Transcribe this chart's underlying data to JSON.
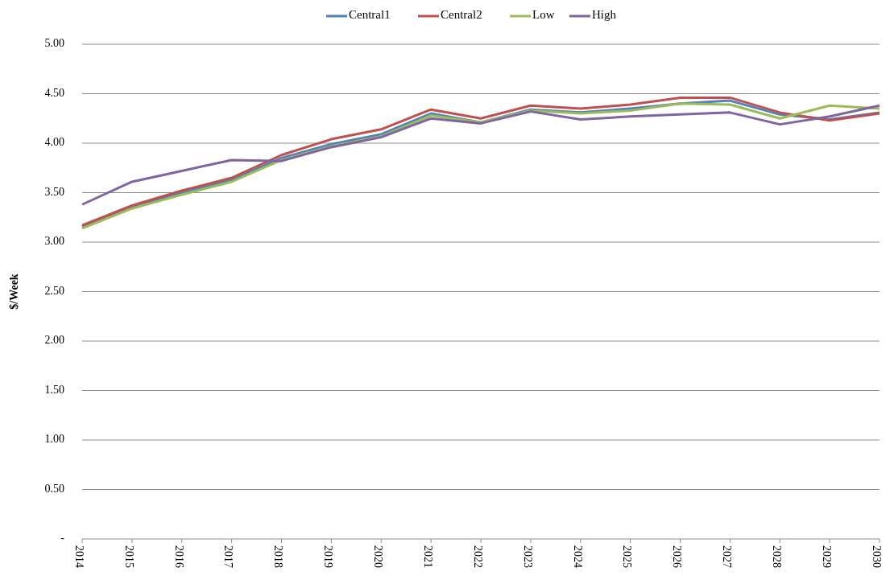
{
  "chart_data": {
    "type": "line",
    "ylabel": "$/Week",
    "categories": [
      "2014",
      "2015",
      "2016",
      "2017",
      "2018",
      "2019",
      "2020",
      "2021",
      "2022",
      "2023",
      "2024",
      "2025",
      "2026",
      "2027",
      "2028",
      "2029",
      "2030"
    ],
    "series": [
      {
        "name": "Central1",
        "color": "#4f81bd",
        "values": [
          3.16,
          3.36,
          3.5,
          3.63,
          3.85,
          3.99,
          4.09,
          4.3,
          4.21,
          4.34,
          4.31,
          4.35,
          4.4,
          4.43,
          4.29,
          4.24,
          4.31
        ]
      },
      {
        "name": "Central2",
        "color": "#c0504d",
        "values": [
          3.17,
          3.37,
          3.52,
          3.65,
          3.88,
          4.04,
          4.14,
          4.34,
          4.25,
          4.38,
          4.35,
          4.39,
          4.46,
          4.46,
          4.31,
          4.23,
          4.3
        ]
      },
      {
        "name": "Low",
        "color": "#9bbb59",
        "values": [
          3.14,
          3.34,
          3.48,
          3.61,
          3.83,
          3.97,
          4.07,
          4.28,
          4.21,
          4.33,
          4.3,
          4.33,
          4.4,
          4.39,
          4.25,
          4.38,
          4.35
        ]
      },
      {
        "name": "High",
        "color": "#8064a2",
        "values": [
          3.38,
          3.61,
          3.72,
          3.83,
          3.82,
          3.96,
          4.06,
          4.25,
          4.2,
          4.32,
          4.24,
          4.27,
          4.29,
          4.31,
          4.19,
          4.27,
          4.38
        ]
      }
    ],
    "ylim": [
      0,
      5
    ],
    "yticks": [
      {
        "value": 0,
        "label": "-"
      },
      {
        "value": 0.5,
        "label": "0.50"
      },
      {
        "value": 1,
        "label": "1.00"
      },
      {
        "value": 1.5,
        "label": "1.50"
      },
      {
        "value": 2,
        "label": "2.00"
      },
      {
        "value": 2.5,
        "label": "2.50"
      },
      {
        "value": 3,
        "label": "3.00"
      },
      {
        "value": 3.5,
        "label": "3.50"
      },
      {
        "value": 4,
        "label": "4.00"
      },
      {
        "value": 4.5,
        "label": "4.50"
      },
      {
        "value": 5,
        "label": "5.00"
      }
    ],
    "grid": "y",
    "legend": "top",
    "marker": "none",
    "line_style": "solid"
  }
}
